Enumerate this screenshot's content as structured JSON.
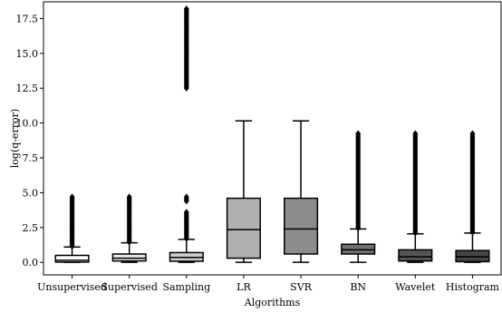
{
  "chart_data": {
    "type": "box",
    "title": "",
    "xlabel": "Algorithms",
    "ylabel": "log(q-error)",
    "ylim": [
      -0.9,
      18.7
    ],
    "yticks": [
      0.0,
      2.5,
      5.0,
      7.5,
      10.0,
      12.5,
      15.0,
      17.5
    ],
    "ytick_labels": [
      "0.0",
      "2.5",
      "5.0",
      "7.5",
      "10.0",
      "12.5",
      "15.0",
      "17.5"
    ],
    "grid": false,
    "legend": "none",
    "categories": [
      "Unsupervised",
      "Supervised",
      "Sampling",
      "LR",
      "SVR",
      "BN",
      "Wavelet",
      "Histogram"
    ],
    "boxes": [
      {
        "name": "Unsupervised",
        "whisker_low": 0.0,
        "q1": 0.02,
        "median": 0.15,
        "q3": 0.5,
        "whisker_high": 1.1,
        "fliers": [
          {
            "from": 1.15,
            "to": 4.7
          }
        ],
        "color": "#ffffff"
      },
      {
        "name": "Supervised",
        "whisker_low": 0.0,
        "q1": 0.1,
        "median": 0.3,
        "q3": 0.6,
        "whisker_high": 1.4,
        "fliers": [
          {
            "from": 1.45,
            "to": 4.7
          }
        ],
        "color": "#e6e6e6"
      },
      {
        "name": "Sampling",
        "whisker_low": 0.0,
        "q1": 0.08,
        "median": 0.35,
        "q3": 0.7,
        "whisker_high": 1.65,
        "fliers": [
          {
            "from": 1.7,
            "to": 3.6
          },
          {
            "from": 4.4,
            "to": 4.7
          },
          {
            "from": 12.5,
            "to": 18.2
          }
        ],
        "color": "#cccccc"
      },
      {
        "name": "LR",
        "whisker_low": 0.0,
        "q1": 0.3,
        "median": 2.35,
        "q3": 4.6,
        "whisker_high": 10.15,
        "fliers": [],
        "color": "#b0b0b0"
      },
      {
        "name": "SVR",
        "whisker_low": 0.0,
        "q1": 0.6,
        "median": 2.4,
        "q3": 4.6,
        "whisker_high": 10.15,
        "fliers": [],
        "color": "#8c8c8c"
      },
      {
        "name": "BN",
        "whisker_low": 0.0,
        "q1": 0.6,
        "median": 0.9,
        "q3": 1.3,
        "whisker_high": 2.4,
        "fliers": [
          {
            "from": 2.45,
            "to": 9.25
          }
        ],
        "color": "#707070"
      },
      {
        "name": "Wavelet",
        "whisker_low": 0.0,
        "q1": 0.1,
        "median": 0.4,
        "q3": 0.9,
        "whisker_high": 2.05,
        "fliers": [
          {
            "from": 2.1,
            "to": 9.25
          }
        ],
        "color": "#555555"
      },
      {
        "name": "Histogram",
        "whisker_low": 0.0,
        "q1": 0.05,
        "median": 0.4,
        "q3": 0.85,
        "whisker_high": 2.1,
        "fliers": [
          {
            "from": 2.15,
            "to": 9.25
          }
        ],
        "color": "#454545"
      }
    ]
  }
}
